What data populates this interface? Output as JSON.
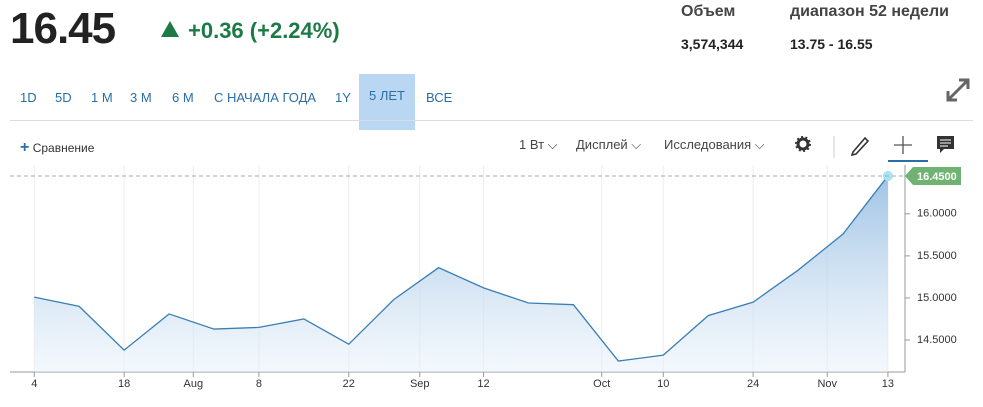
{
  "header": {
    "price": "16.45",
    "change": "+0.36 (+2.24%)",
    "volume_label": "Объем",
    "volume": "3,574,344",
    "range_label": "диапазон 52 недели",
    "range": "13.75 - 16.55"
  },
  "range_buttons": [
    "1D",
    "5D",
    "1 M",
    "3 M",
    "6 M",
    "С НАЧАЛА ГОДА",
    "1Y",
    "5 ЛЕТ",
    "ВСЕ"
  ],
  "active_range": 7,
  "toolbar": {
    "compare": "Сравнение",
    "interval": "1 Вт",
    "display": "Дисплей",
    "studies": "Исследования"
  },
  "chart_data": {
    "type": "area",
    "color": "#3a7fb5",
    "values": [
      15.01,
      14.9,
      14.38,
      14.81,
      14.63,
      14.65,
      14.75,
      14.45,
      14.98,
      15.36,
      15.12,
      14.94,
      14.92,
      14.25,
      14.32,
      14.79,
      14.95,
      15.33,
      15.76,
      16.45
    ],
    "xlim": [
      -0.54,
      19.38
    ],
    "xticks": [
      {
        "value": 0,
        "label": "4"
      },
      {
        "value": 2,
        "label": "18"
      },
      {
        "value": 3.54,
        "label": "Aug"
      },
      {
        "value": 5,
        "label": "8"
      },
      {
        "value": 7,
        "label": "22"
      },
      {
        "value": 8.58,
        "label": "Sep"
      },
      {
        "value": 10,
        "label": "12"
      },
      {
        "value": 12.63,
        "label": "Oct"
      },
      {
        "value": 14,
        "label": "10"
      },
      {
        "value": 16,
        "label": "24"
      },
      {
        "value": 17.65,
        "label": "Nov"
      },
      {
        "value": 19,
        "label": "13"
      }
    ],
    "ylim": [
      14.12,
      16.58
    ],
    "yticks": [
      {
        "value": 14.5,
        "label": "14.5000"
      },
      {
        "value": 15,
        "label": "15.0000"
      },
      {
        "value": 15.5,
        "label": "15.5000"
      },
      {
        "value": 16,
        "label": "16.0000"
      }
    ],
    "last_price": {
      "value": 16.45,
      "label": "16.4500"
    }
  }
}
